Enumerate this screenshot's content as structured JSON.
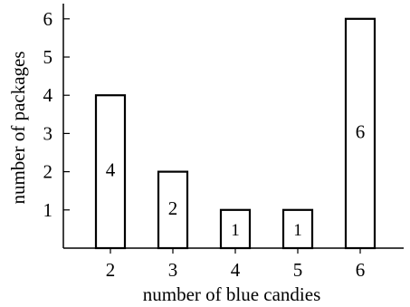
{
  "chart_data": {
    "type": "bar",
    "categories": [
      "2",
      "3",
      "4",
      "5",
      "6"
    ],
    "values": [
      4,
      2,
      1,
      1,
      6
    ],
    "bar_labels": [
      "4",
      "2",
      "1",
      "1",
      "6"
    ],
    "xlabel": "number of blue candies",
    "ylabel": "number of packages",
    "yticks": [
      "1",
      "2",
      "3",
      "4",
      "5",
      "6"
    ],
    "ylim": [
      0,
      6.5
    ],
    "grid": false
  }
}
